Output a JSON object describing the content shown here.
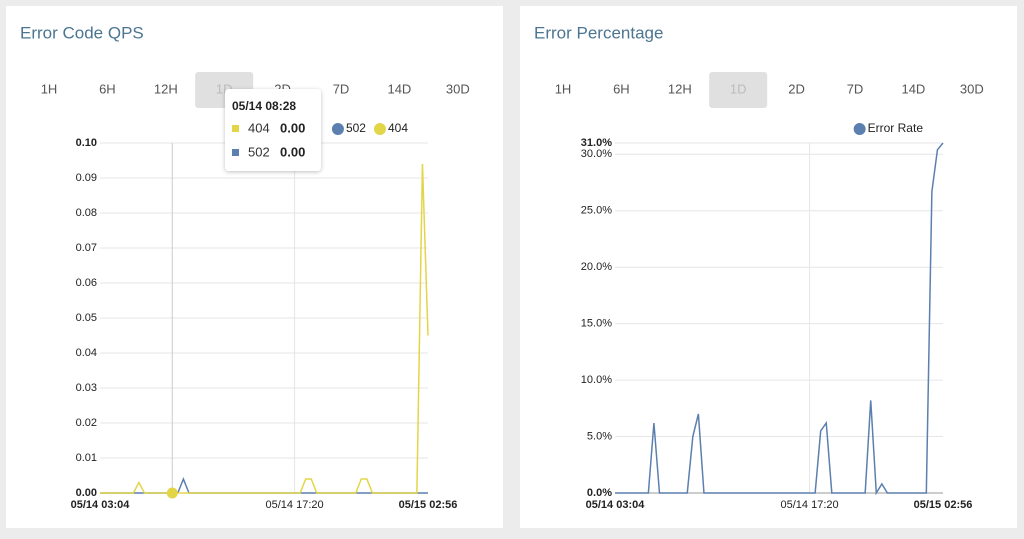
{
  "chart_data": [
    {
      "type": "line",
      "title": "Error Code QPS",
      "time_ranges": [
        "1H",
        "6H",
        "12H",
        "1D",
        "2D",
        "7D",
        "14D",
        "30D"
      ],
      "selected_range": 3,
      "categories": [
        "05/14 03:04",
        null,
        null,
        null,
        null,
        null,
        null,
        null,
        null,
        null,
        null,
        null,
        null,
        null,
        null,
        null,
        null,
        null,
        null,
        null,
        null,
        null,
        null,
        null,
        null,
        null,
        null,
        null,
        null,
        null,
        null,
        null,
        null,
        null,
        null,
        "05/14 17:20",
        null,
        null,
        null,
        null,
        null,
        null,
        null,
        null,
        null,
        null,
        null,
        null,
        null,
        null,
        null,
        null,
        null,
        null,
        null,
        null,
        null,
        null,
        null,
        "05/15 02:56"
      ],
      "series": [
        {
          "name": "502",
          "color": "#5b7fae",
          "values": [
            0,
            0,
            0,
            0,
            0,
            0,
            0,
            0,
            0,
            0,
            0,
            0,
            0,
            0,
            0,
            0.004,
            0,
            0,
            0,
            0,
            0,
            0,
            0,
            0,
            0,
            0,
            0,
            0,
            0,
            0,
            0,
            0,
            0,
            0,
            0,
            0,
            0,
            0,
            0,
            0,
            0,
            0,
            0,
            0,
            0,
            0,
            0,
            0,
            0,
            0,
            0,
            0,
            0,
            0,
            0,
            0,
            0,
            0,
            0,
            0
          ]
        },
        {
          "name": "404",
          "color": "#e3d548",
          "values": [
            0,
            0,
            0,
            0,
            0,
            0,
            0,
            0.003,
            0,
            0,
            0,
            0,
            0,
            0,
            0,
            0,
            0,
            0,
            0,
            0,
            0,
            0,
            0,
            0,
            0,
            0,
            0,
            0,
            0,
            0,
            0,
            0,
            0,
            0,
            0,
            0,
            0,
            0.004,
            0.004,
            0,
            0,
            0,
            0,
            0,
            0,
            0,
            0,
            0.004,
            0.004,
            0,
            0,
            0,
            0,
            0,
            0,
            0,
            0,
            0,
            0.094,
            0.045
          ]
        }
      ],
      "ylim": [
        0,
        0.1
      ],
      "yticks": [
        {
          "value": 0,
          "label": "0.00"
        },
        {
          "value": 0.01,
          "label": "0.01"
        },
        {
          "value": 0.02,
          "label": "0.02"
        },
        {
          "value": 0.03,
          "label": "0.03"
        },
        {
          "value": 0.04,
          "label": "0.04"
        },
        {
          "value": 0.05,
          "label": "0.05"
        },
        {
          "value": 0.06,
          "label": "0.06"
        },
        {
          "value": 0.07,
          "label": "0.07"
        },
        {
          "value": 0.08,
          "label": "0.08"
        },
        {
          "value": 0.09,
          "label": "0.09"
        },
        {
          "value": 0.1,
          "label": "0.10"
        }
      ],
      "grid": true,
      "hover_index": 13,
      "tooltip": {
        "title": "05/14 08:28",
        "rows": [
          {
            "name": "404",
            "color": "#e3d548",
            "value": 0,
            "label": "0.00"
          },
          {
            "name": "502",
            "color": "#5b7fae",
            "value": 0,
            "label": "0.00"
          }
        ]
      }
    },
    {
      "type": "line",
      "title": "Error Percentage",
      "time_ranges": [
        "1H",
        "6H",
        "12H",
        "1D",
        "2D",
        "7D",
        "14D",
        "30D"
      ],
      "selected_range": 3,
      "categories": [
        "05/14 03:04",
        null,
        null,
        null,
        null,
        null,
        null,
        null,
        null,
        null,
        null,
        null,
        null,
        null,
        null,
        null,
        null,
        null,
        null,
        null,
        null,
        null,
        null,
        null,
        null,
        null,
        null,
        null,
        null,
        null,
        null,
        null,
        null,
        null,
        null,
        "05/14 17:20",
        null,
        null,
        null,
        null,
        null,
        null,
        null,
        null,
        null,
        null,
        null,
        null,
        null,
        null,
        null,
        null,
        null,
        null,
        null,
        null,
        null,
        null,
        null,
        "05/15 02:56"
      ],
      "series": [
        {
          "name": "Error Rate",
          "color": "#5b7fae",
          "values": [
            0,
            0,
            0,
            0,
            0,
            0,
            0,
            6.2,
            0,
            0,
            0,
            0,
            0,
            0,
            5.0,
            7.0,
            0,
            0,
            0,
            0,
            0,
            0,
            0,
            0,
            0,
            0,
            0,
            0,
            0,
            0,
            0,
            0,
            0,
            0,
            0,
            0,
            0,
            5.5,
            6.2,
            0,
            0,
            0,
            0,
            0,
            0,
            0,
            8.2,
            0,
            0.8,
            0,
            0,
            0,
            0,
            0,
            0,
            0,
            0,
            26.7,
            30.4,
            31.0
          ]
        }
      ],
      "ylim": [
        0,
        31
      ],
      "yticks": [
        {
          "value": 0,
          "label": "0.0%"
        },
        {
          "value": 5,
          "label": "5.0%"
        },
        {
          "value": 10,
          "label": "10.0%"
        },
        {
          "value": 15,
          "label": "15.0%"
        },
        {
          "value": 20,
          "label": "20.0%"
        },
        {
          "value": 25,
          "label": "25.0%"
        },
        {
          "value": 30,
          "label": "30.0%"
        },
        {
          "value": 31,
          "label": "31.0%"
        }
      ],
      "grid": true
    }
  ]
}
